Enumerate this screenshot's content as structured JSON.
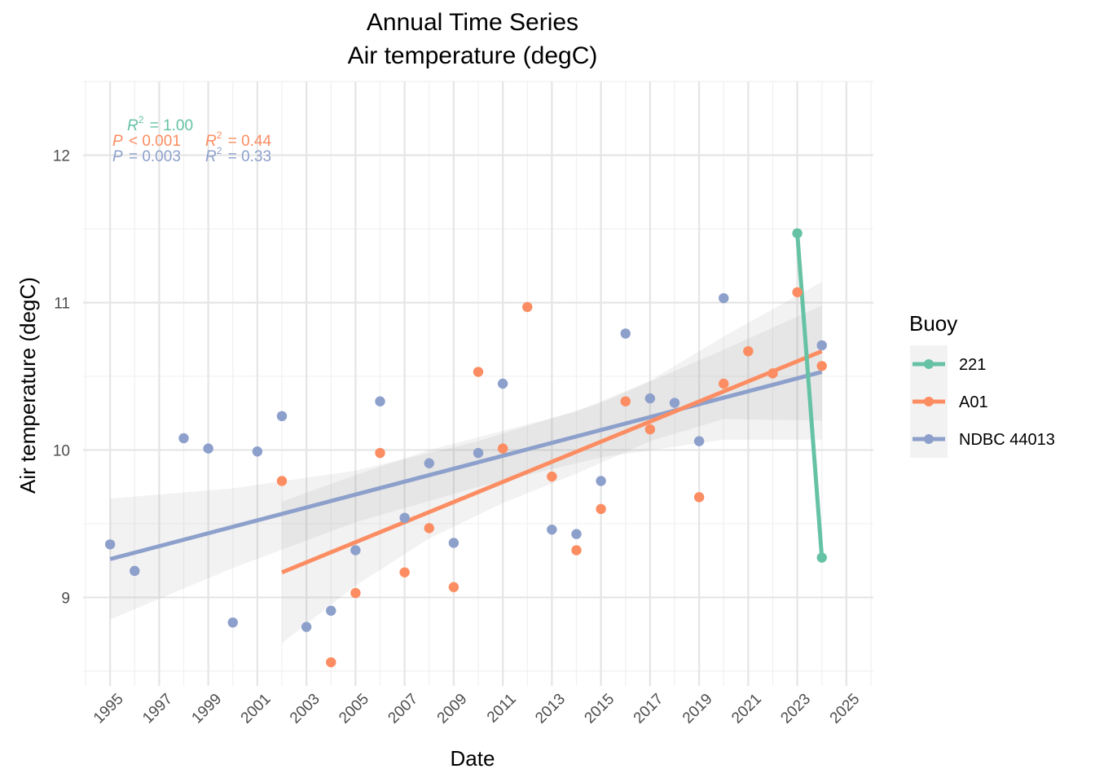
{
  "chart_data": {
    "type": "scatter",
    "title": "Annual Time Series",
    "subtitle": "Air temperature (degC)",
    "xlabel": "Date",
    "ylabel": "Air temperature (degC)",
    "xlim": [
      1993.9,
      2026.1
    ],
    "ylim": [
      8.4,
      12.5
    ],
    "x_ticks": [
      1995,
      1997,
      1999,
      2001,
      2003,
      2005,
      2007,
      2009,
      2011,
      2013,
      2015,
      2017,
      2019,
      2021,
      2023,
      2025
    ],
    "x_tick_labels": [
      "1995",
      "1997",
      "1999",
      "2001",
      "2003",
      "2005",
      "2007",
      "2009",
      "2011",
      "2013",
      "2015",
      "2017",
      "2019",
      "2021",
      "2023",
      "2025"
    ],
    "y_ticks": [
      9,
      10,
      11,
      12
    ],
    "y_tick_labels": [
      "9",
      "10",
      "11",
      "12"
    ],
    "grid": true,
    "legend": {
      "title": "Buoy",
      "position": "right"
    },
    "series": [
      {
        "name": "221",
        "color": "#66c2a5",
        "points": [
          {
            "x": 2023,
            "y": 11.47
          },
          {
            "x": 2024,
            "y": 9.27
          }
        ],
        "trend": {
          "x0": 2023,
          "y0": 11.47,
          "x1": 2024,
          "y1": 9.27
        },
        "band": [],
        "stats": {
          "p_label": "",
          "p_value": "",
          "r2_label": "R",
          "r2_value": "= 1.00"
        }
      },
      {
        "name": "A01",
        "color": "#fc8d62",
        "points": [
          {
            "x": 2002,
            "y": 9.79
          },
          {
            "x": 2004,
            "y": 8.56
          },
          {
            "x": 2005,
            "y": 9.03
          },
          {
            "x": 2006,
            "y": 9.98
          },
          {
            "x": 2007,
            "y": 9.17
          },
          {
            "x": 2008,
            "y": 9.47
          },
          {
            "x": 2009,
            "y": 9.07
          },
          {
            "x": 2010,
            "y": 10.53
          },
          {
            "x": 2011,
            "y": 10.01
          },
          {
            "x": 2012,
            "y": 10.97
          },
          {
            "x": 2013,
            "y": 9.82
          },
          {
            "x": 2014,
            "y": 9.32
          },
          {
            "x": 2015,
            "y": 9.6
          },
          {
            "x": 2016,
            "y": 10.33
          },
          {
            "x": 2017,
            "y": 10.14
          },
          {
            "x": 2019,
            "y": 9.68
          },
          {
            "x": 2020,
            "y": 10.45
          },
          {
            "x": 2021,
            "y": 10.67
          },
          {
            "x": 2022,
            "y": 10.52
          },
          {
            "x": 2023,
            "y": 11.07
          },
          {
            "x": 2024,
            "y": 10.57
          }
        ],
        "trend": {
          "x0": 2002,
          "y0": 9.17,
          "x1": 2024,
          "y1": 10.67
        },
        "band": [
          {
            "x": 2002,
            "lo": 8.69,
            "hi": 9.65
          },
          {
            "x": 2005,
            "lo": 9.08,
            "hi": 9.83
          },
          {
            "x": 2008,
            "lo": 9.4,
            "hi": 10.0
          },
          {
            "x": 2011,
            "lo": 9.64,
            "hi": 10.13
          },
          {
            "x": 2014,
            "lo": 9.84,
            "hi": 10.26
          },
          {
            "x": 2017,
            "lo": 10.06,
            "hi": 10.47
          },
          {
            "x": 2020,
            "lo": 10.21,
            "hi": 10.77
          },
          {
            "x": 2024,
            "lo": 10.2,
            "hi": 11.14
          }
        ],
        "stats": {
          "p_label": "P",
          "p_value": "< 0.001",
          "r2_label": "R",
          "r2_value": "= 0.44"
        }
      },
      {
        "name": "NDBC 44013",
        "color": "#8da0cb",
        "points": [
          {
            "x": 1995,
            "y": 9.36
          },
          {
            "x": 1996,
            "y": 9.18
          },
          {
            "x": 1998,
            "y": 10.08
          },
          {
            "x": 1999,
            "y": 10.01
          },
          {
            "x": 2000,
            "y": 8.83
          },
          {
            "x": 2001,
            "y": 9.99
          },
          {
            "x": 2002,
            "y": 10.23
          },
          {
            "x": 2003,
            "y": 8.8
          },
          {
            "x": 2004,
            "y": 8.91
          },
          {
            "x": 2005,
            "y": 9.32
          },
          {
            "x": 2006,
            "y": 10.33
          },
          {
            "x": 2007,
            "y": 9.54
          },
          {
            "x": 2008,
            "y": 9.91
          },
          {
            "x": 2009,
            "y": 9.37
          },
          {
            "x": 2010,
            "y": 9.98
          },
          {
            "x": 2011,
            "y": 10.45
          },
          {
            "x": 2013,
            "y": 9.46
          },
          {
            "x": 2014,
            "y": 9.43
          },
          {
            "x": 2015,
            "y": 9.79
          },
          {
            "x": 2016,
            "y": 10.79
          },
          {
            "x": 2017,
            "y": 10.35
          },
          {
            "x": 2018,
            "y": 10.32
          },
          {
            "x": 2019,
            "y": 10.06
          },
          {
            "x": 2020,
            "y": 11.03
          },
          {
            "x": 2024,
            "y": 10.71
          }
        ],
        "trend": {
          "x0": 1995,
          "y0": 9.26,
          "x1": 2024,
          "y1": 10.53
        },
        "band": [
          {
            "x": 1995,
            "lo": 8.85,
            "hi": 9.67
          },
          {
            "x": 2000,
            "lo": 9.2,
            "hi": 9.74
          },
          {
            "x": 2005,
            "lo": 9.51,
            "hi": 9.86
          },
          {
            "x": 2010,
            "lo": 9.75,
            "hi": 10.06
          },
          {
            "x": 2015,
            "lo": 9.95,
            "hi": 10.32
          },
          {
            "x": 2020,
            "lo": 10.07,
            "hi": 10.68
          },
          {
            "x": 2024,
            "lo": 10.07,
            "hi": 10.98
          }
        ],
        "stats": {
          "p_label": "P",
          "p_value": "= 0.003",
          "r2_label": "R",
          "r2_value": "= 0.33"
        }
      }
    ]
  }
}
